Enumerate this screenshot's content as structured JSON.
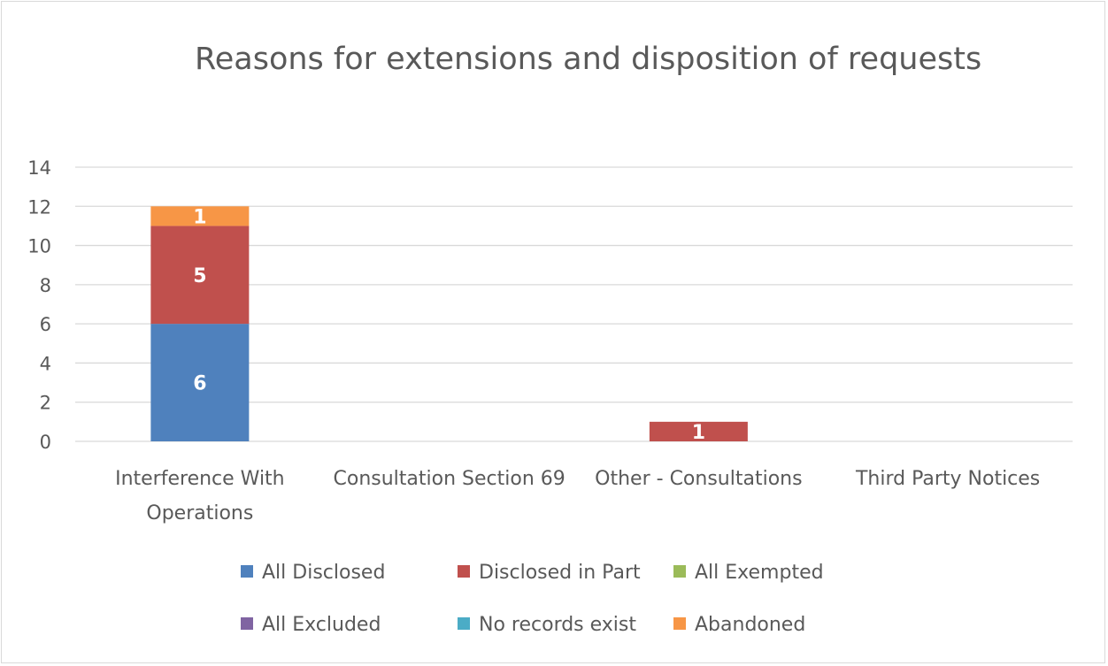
{
  "chart_data": {
    "type": "bar",
    "stacked": true,
    "title": "Reasons for extensions and disposition of requests",
    "xlabel": "",
    "ylabel": "",
    "ylim": [
      0,
      14
    ],
    "yticks": [
      0,
      2,
      4,
      6,
      8,
      10,
      12,
      14
    ],
    "grid": true,
    "legend_position": "bottom",
    "categories": [
      "Interference With Operations",
      "Consultation Section 69",
      "Other - Consultations",
      "Third Party Notices"
    ],
    "series": [
      {
        "name": "All Disclosed",
        "color": "#4F81BD",
        "values": [
          6,
          0,
          0,
          0
        ]
      },
      {
        "name": "Disclosed in Part",
        "color": "#C0504D",
        "values": [
          5,
          0,
          1,
          0
        ]
      },
      {
        "name": "All Exempted",
        "color": "#9BBB59",
        "values": [
          0,
          0,
          0,
          0
        ]
      },
      {
        "name": "All Excluded",
        "color": "#8064A2",
        "values": [
          0,
          0,
          0,
          0
        ]
      },
      {
        "name": "No records exist",
        "color": "#4BACC6",
        "values": [
          0,
          0,
          0,
          0
        ]
      },
      {
        "name": "Abandoned",
        "color": "#F79646",
        "values": [
          1,
          0,
          0,
          0
        ]
      }
    ]
  }
}
